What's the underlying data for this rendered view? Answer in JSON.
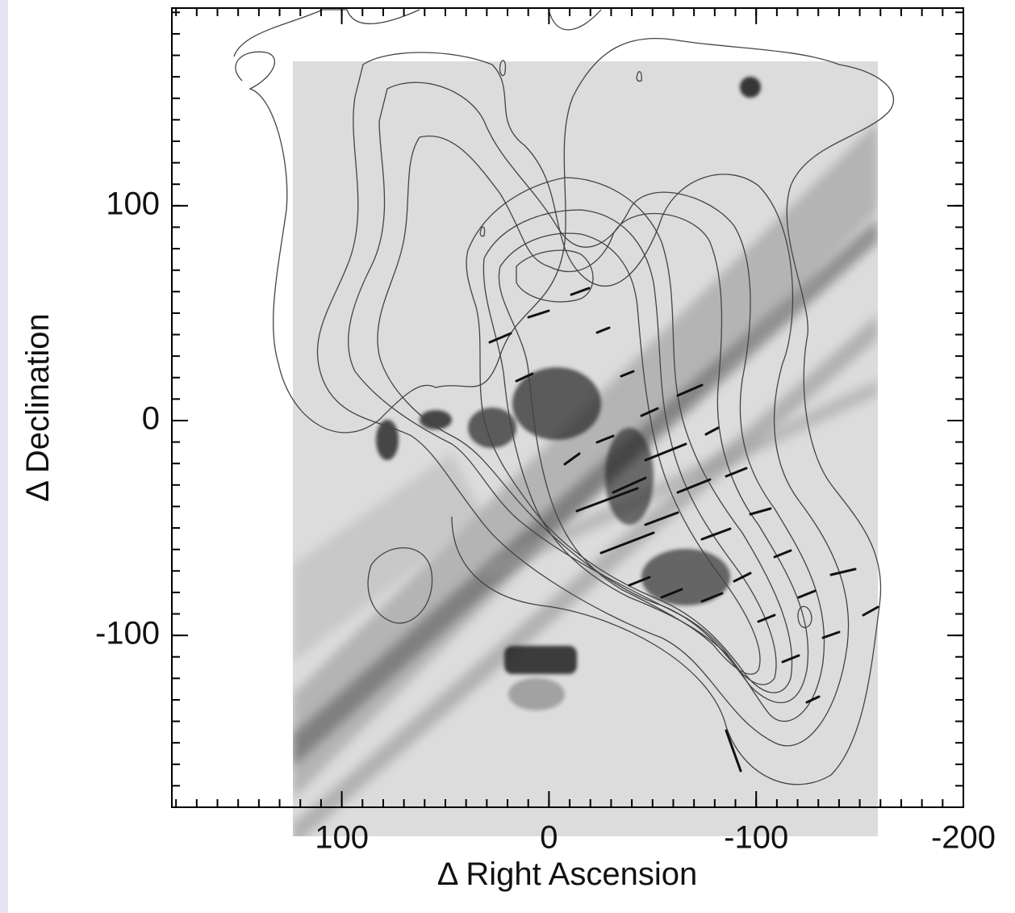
{
  "chart_data": {
    "type": "image",
    "x_label": "Δ Right Ascension",
    "y_label": "Δ Declination",
    "xlim": [
      182,
      -200
    ],
    "ylim": [
      -180,
      192
    ],
    "xticks": [
      100,
      0,
      -100,
      -200
    ],
    "yticks": [
      100,
      0,
      -100
    ]
  }
}
